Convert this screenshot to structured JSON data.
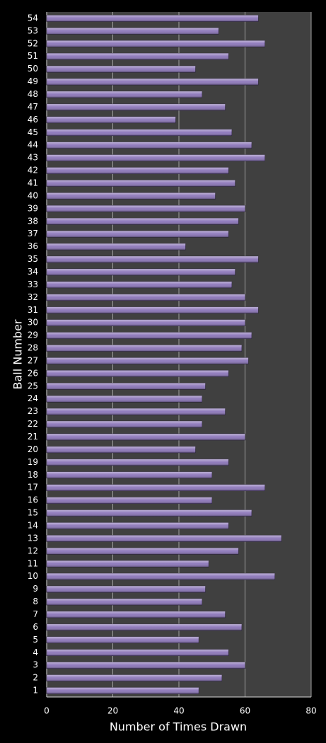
{
  "chart_data": {
    "type": "barh",
    "x_label": "Number of Times Drawn",
    "y_label": "Ball Number",
    "categories": [
      "1",
      "2",
      "3",
      "4",
      "5",
      "6",
      "7",
      "8",
      "9",
      "10",
      "11",
      "12",
      "13",
      "14",
      "15",
      "16",
      "17",
      "18",
      "19",
      "20",
      "21",
      "22",
      "23",
      "24",
      "25",
      "26",
      "27",
      "28",
      "29",
      "30",
      "31",
      "32",
      "33",
      "34",
      "35",
      "36",
      "37",
      "38",
      "39",
      "40",
      "41",
      "42",
      "43",
      "44",
      "45",
      "46",
      "47",
      "48",
      "49",
      "50",
      "51",
      "52",
      "53",
      "54"
    ],
    "values": [
      46,
      53,
      60,
      55,
      46,
      59,
      54,
      47,
      48,
      69,
      49,
      58,
      71,
      55,
      62,
      50,
      66,
      50,
      55,
      45,
      60,
      47,
      54,
      47,
      48,
      55,
      61,
      59,
      62,
      60,
      64,
      60,
      56,
      57,
      64,
      42,
      55,
      58,
      60,
      51,
      57,
      55,
      66,
      62,
      56,
      39,
      54,
      47,
      64,
      45,
      55,
      66,
      52,
      64
    ],
    "color": "#8a74b8",
    "xlim": [
      0,
      80
    ],
    "xticks": [
      0,
      20,
      40,
      60,
      80
    ],
    "grid": true
  }
}
